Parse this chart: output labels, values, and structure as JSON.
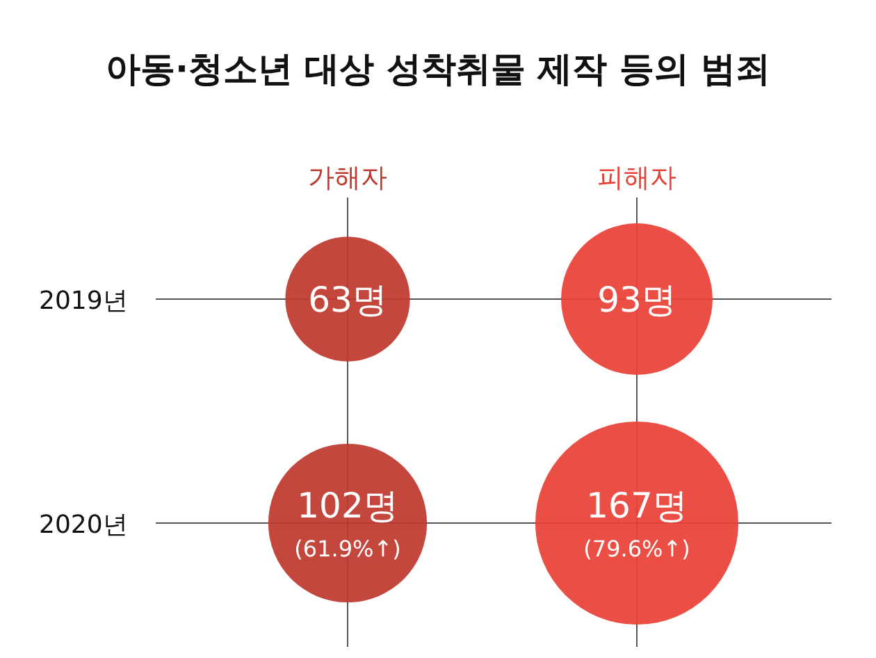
{
  "chart_data": {
    "type": "other",
    "title": "아동·청소년 대상 성착취물 제작 등의 범죄",
    "categories": [
      "2019년",
      "2020년"
    ],
    "series": [
      {
        "name": "가해자",
        "color": "#c0392f",
        "values": [
          63,
          102
        ],
        "value_labels": [
          "63명",
          "102명 (61.9%↑)"
        ]
      },
      {
        "name": "피해자",
        "color": "#e84136",
        "values": [
          93,
          167
        ],
        "value_labels": [
          "93명",
          "167명 (79.6%↑)"
        ]
      }
    ]
  }
}
